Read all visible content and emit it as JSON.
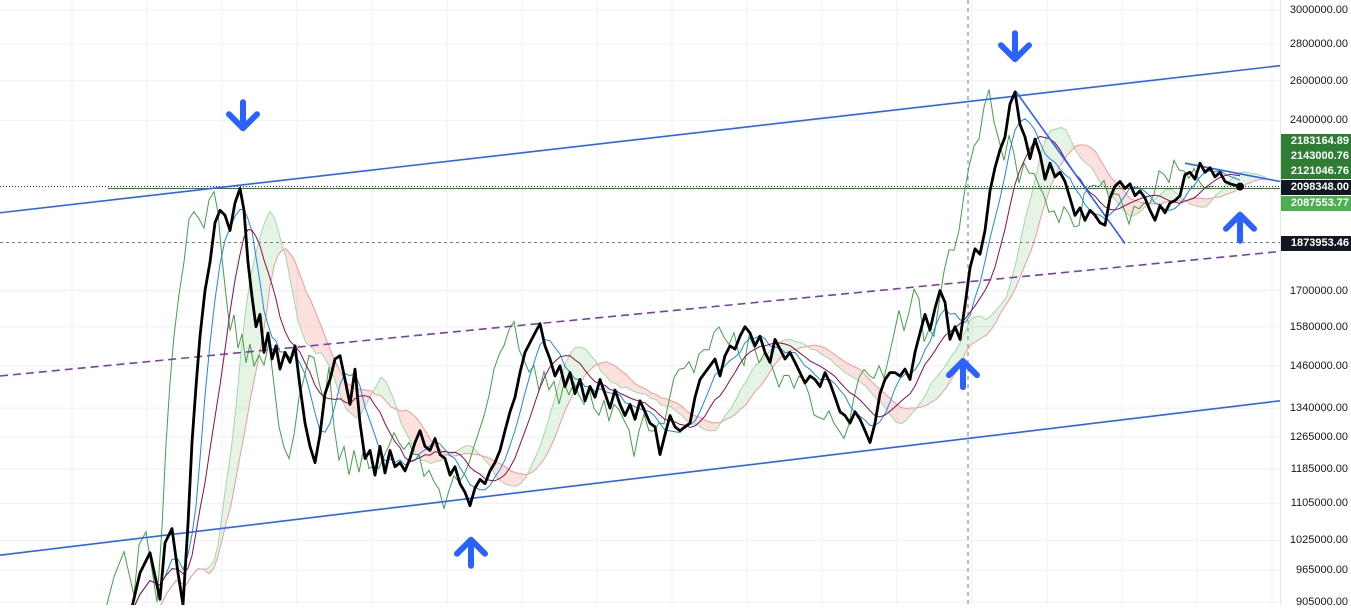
{
  "chart_data": {
    "type": "line",
    "y_scale": "log",
    "ylim": [
      905000,
      3000000
    ],
    "grid": true,
    "y_ticks": [
      {
        "value": 3000000,
        "label": "3000000.00"
      },
      {
        "value": 2800000,
        "label": "2800000.00"
      },
      {
        "value": 2600000,
        "label": "2600000.00"
      },
      {
        "value": 2400000,
        "label": "2400000.00"
      },
      {
        "value": 1700000,
        "label": "1700000.00"
      },
      {
        "value": 1580000,
        "label": "1580000.00"
      },
      {
        "value": 1460000,
        "label": "1460000.00"
      },
      {
        "value": 1340000,
        "label": "1340000.00"
      },
      {
        "value": 1265000,
        "label": "1265000.00"
      },
      {
        "value": 1185000,
        "label": "1185000.00"
      },
      {
        "value": 1105000,
        "label": "1105000.00"
      },
      {
        "value": 1025000,
        "label": "1025000.00"
      },
      {
        "value": 965000,
        "label": "965000.00"
      },
      {
        "value": 905000,
        "label": "905000.00"
      }
    ],
    "price_tags": [
      {
        "value": 2183164.89,
        "label": "2183164.89",
        "color": "#2e7d32"
      },
      {
        "value": 2143000.76,
        "label": "2143000.76",
        "color": "#2e7d32"
      },
      {
        "value": 2121046.76,
        "label": "2121046.76",
        "color": "#2e7d32"
      },
      {
        "value": 2098348.0,
        "label": "2098348.00",
        "color": "#131722"
      },
      {
        "value": 2087553.77,
        "label": "2087553.77",
        "color": "#4caf50"
      },
      {
        "value": 1873953.46,
        "label": "1873953.46",
        "color": "#131722"
      }
    ],
    "price_series": [
      [
        130,
        880000
      ],
      [
        140,
        960000
      ],
      [
        150,
        1000000
      ],
      [
        160,
        910000
      ],
      [
        165,
        1020000
      ],
      [
        172,
        1050000
      ],
      [
        178,
        960000
      ],
      [
        183,
        900000
      ],
      [
        188,
        1060000
      ],
      [
        192,
        1250000
      ],
      [
        196,
        1400000
      ],
      [
        200,
        1550000
      ],
      [
        205,
        1700000
      ],
      [
        210,
        1800000
      ],
      [
        215,
        1950000
      ],
      [
        220,
        2000000
      ],
      [
        225,
        1980000
      ],
      [
        230,
        1920000
      ],
      [
        235,
        2030000
      ],
      [
        240,
        2090000
      ],
      [
        244,
        2000000
      ],
      [
        248,
        1800000
      ],
      [
        252,
        1680000
      ],
      [
        256,
        1580000
      ],
      [
        260,
        1620000
      ],
      [
        264,
        1500000
      ],
      [
        268,
        1560000
      ],
      [
        272,
        1480000
      ],
      [
        276,
        1520000
      ],
      [
        280,
        1450000
      ],
      [
        285,
        1500000
      ],
      [
        290,
        1470000
      ],
      [
        295,
        1520000
      ],
      [
        300,
        1400000
      ],
      [
        305,
        1300000
      ],
      [
        310,
        1240000
      ],
      [
        315,
        1200000
      ],
      [
        320,
        1270000
      ],
      [
        325,
        1380000
      ],
      [
        330,
        1420000
      ],
      [
        335,
        1480000
      ],
      [
        340,
        1490000
      ],
      [
        345,
        1420000
      ],
      [
        350,
        1350000
      ],
      [
        355,
        1450000
      ],
      [
        360,
        1300000
      ],
      [
        365,
        1210000
      ],
      [
        370,
        1230000
      ],
      [
        375,
        1170000
      ],
      [
        380,
        1240000
      ],
      [
        385,
        1175000
      ],
      [
        390,
        1230000
      ],
      [
        395,
        1190000
      ],
      [
        400,
        1200000
      ],
      [
        405,
        1180000
      ],
      [
        410,
        1210000
      ],
      [
        415,
        1250000
      ],
      [
        420,
        1280000
      ],
      [
        425,
        1240000
      ],
      [
        430,
        1230000
      ],
      [
        435,
        1260000
      ],
      [
        440,
        1220000
      ],
      [
        445,
        1210000
      ],
      [
        450,
        1170000
      ],
      [
        455,
        1190000
      ],
      [
        460,
        1150000
      ],
      [
        465,
        1130000
      ],
      [
        470,
        1100000
      ],
      [
        475,
        1140000
      ],
      [
        480,
        1160000
      ],
      [
        485,
        1150000
      ],
      [
        490,
        1180000
      ],
      [
        495,
        1200000
      ],
      [
        500,
        1230000
      ],
      [
        505,
        1280000
      ],
      [
        510,
        1330000
      ],
      [
        515,
        1370000
      ],
      [
        520,
        1440000
      ],
      [
        525,
        1500000
      ],
      [
        530,
        1530000
      ],
      [
        535,
        1560000
      ],
      [
        540,
        1590000
      ],
      [
        545,
        1520000
      ],
      [
        550,
        1480000
      ],
      [
        555,
        1430000
      ],
      [
        560,
        1460000
      ],
      [
        565,
        1400000
      ],
      [
        570,
        1440000
      ],
      [
        575,
        1380000
      ],
      [
        580,
        1420000
      ],
      [
        585,
        1360000
      ],
      [
        590,
        1400000
      ],
      [
        595,
        1370000
      ],
      [
        600,
        1420000
      ],
      [
        605,
        1380000
      ],
      [
        610,
        1340000
      ],
      [
        615,
        1390000
      ],
      [
        620,
        1350000
      ],
      [
        625,
        1320000
      ],
      [
        630,
        1350000
      ],
      [
        635,
        1310000
      ],
      [
        640,
        1360000
      ],
      [
        645,
        1330000
      ],
      [
        650,
        1300000
      ],
      [
        655,
        1290000
      ],
      [
        660,
        1220000
      ],
      [
        665,
        1270000
      ],
      [
        670,
        1320000
      ],
      [
        675,
        1290000
      ],
      [
        680,
        1280000
      ],
      [
        685,
        1290000
      ],
      [
        690,
        1300000
      ],
      [
        695,
        1370000
      ],
      [
        700,
        1420000
      ],
      [
        705,
        1440000
      ],
      [
        710,
        1460000
      ],
      [
        715,
        1480000
      ],
      [
        720,
        1430000
      ],
      [
        725,
        1490000
      ],
      [
        730,
        1520000
      ],
      [
        735,
        1510000
      ],
      [
        740,
        1550000
      ],
      [
        745,
        1580000
      ],
      [
        750,
        1560000
      ],
      [
        755,
        1520000
      ],
      [
        760,
        1550000
      ],
      [
        765,
        1500000
      ],
      [
        770,
        1470000
      ],
      [
        775,
        1540000
      ],
      [
        780,
        1510000
      ],
      [
        785,
        1480000
      ],
      [
        790,
        1500000
      ],
      [
        795,
        1470000
      ],
      [
        800,
        1440000
      ],
      [
        805,
        1410000
      ],
      [
        810,
        1430000
      ],
      [
        815,
        1420000
      ],
      [
        820,
        1400000
      ],
      [
        825,
        1440000
      ],
      [
        830,
        1410000
      ],
      [
        835,
        1370000
      ],
      [
        840,
        1330000
      ],
      [
        845,
        1320000
      ],
      [
        850,
        1300000
      ],
      [
        855,
        1330000
      ],
      [
        860,
        1310000
      ],
      [
        865,
        1280000
      ],
      [
        870,
        1250000
      ],
      [
        875,
        1300000
      ],
      [
        880,
        1380000
      ],
      [
        885,
        1420000
      ],
      [
        890,
        1440000
      ],
      [
        895,
        1440000
      ],
      [
        900,
        1430000
      ],
      [
        905,
        1450000
      ],
      [
        910,
        1420000
      ],
      [
        915,
        1500000
      ],
      [
        920,
        1560000
      ],
      [
        925,
        1620000
      ],
      [
        930,
        1570000
      ],
      [
        935,
        1640000
      ],
      [
        940,
        1700000
      ],
      [
        945,
        1660000
      ],
      [
        950,
        1540000
      ],
      [
        955,
        1580000
      ],
      [
        960,
        1540000
      ],
      [
        965,
        1650000
      ],
      [
        970,
        1780000
      ],
      [
        975,
        1850000
      ],
      [
        980,
        1830000
      ],
      [
        985,
        1920000
      ],
      [
        990,
        2080000
      ],
      [
        995,
        2180000
      ],
      [
        1000,
        2260000
      ],
      [
        1005,
        2320000
      ],
      [
        1010,
        2480000
      ],
      [
        1015,
        2540000
      ],
      [
        1020,
        2380000
      ],
      [
        1025,
        2320000
      ],
      [
        1030,
        2220000
      ],
      [
        1035,
        2310000
      ],
      [
        1040,
        2240000
      ],
      [
        1045,
        2130000
      ],
      [
        1050,
        2200000
      ],
      [
        1055,
        2140000
      ],
      [
        1060,
        2160000
      ],
      [
        1065,
        2120000
      ],
      [
        1070,
        2050000
      ],
      [
        1075,
        1980000
      ],
      [
        1080,
        2010000
      ],
      [
        1085,
        1960000
      ],
      [
        1090,
        2000000
      ],
      [
        1095,
        1980000
      ],
      [
        1100,
        1950000
      ],
      [
        1105,
        1940000
      ],
      [
        1110,
        2050000
      ],
      [
        1115,
        2100000
      ],
      [
        1120,
        2120000
      ],
      [
        1125,
        2090000
      ],
      [
        1130,
        2110000
      ],
      [
        1135,
        2060000
      ],
      [
        1140,
        2080000
      ],
      [
        1145,
        2050000
      ],
      [
        1150,
        2000000
      ],
      [
        1155,
        1960000
      ],
      [
        1160,
        2020000
      ],
      [
        1165,
        1990000
      ],
      [
        1170,
        2030000
      ],
      [
        1175,
        2040000
      ],
      [
        1180,
        2060000
      ],
      [
        1185,
        2150000
      ],
      [
        1190,
        2160000
      ],
      [
        1195,
        2130000
      ],
      [
        1200,
        2200000
      ],
      [
        1205,
        2160000
      ],
      [
        1210,
        2180000
      ],
      [
        1215,
        2140000
      ],
      [
        1220,
        2160000
      ],
      [
        1225,
        2120000
      ],
      [
        1230,
        2110000
      ],
      [
        1240,
        2098348
      ]
    ],
    "trendlines": [
      {
        "name": "upper-channel",
        "color": "#2962ff",
        "dash": false,
        "points": [
          [
            0,
            1990000
          ],
          [
            1280,
            2680000
          ]
        ]
      },
      {
        "name": "lower-channel",
        "color": "#2962ff",
        "dash": false,
        "points": [
          [
            0,
            995000
          ],
          [
            1280,
            1360000
          ]
        ]
      },
      {
        "name": "mid-channel",
        "color": "#7b3fa8",
        "dash": true,
        "points": [
          [
            0,
            1430000
          ],
          [
            1280,
            1840000
          ]
        ]
      },
      {
        "name": "descending-line",
        "color": "#2962ff",
        "dash": false,
        "points": [
          [
            1015,
            2550000
          ],
          [
            1125,
            1870000
          ]
        ]
      },
      {
        "name": "short-descending-line",
        "color": "#2962ff",
        "dash": false,
        "points": [
          [
            1185,
            2200000
          ],
          [
            1280,
            2120000
          ]
        ]
      }
    ],
    "horizontal_levels": [
      {
        "name": "resistance-level",
        "value": 2090000,
        "color": "#2e7d32",
        "from": 108,
        "to": 1280
      },
      {
        "name": "support-level",
        "value": 1873953.46,
        "color": "#787b86",
        "from": 0,
        "to": 1280,
        "dash": true
      }
    ],
    "markers": [
      {
        "name": "down-arrow",
        "x": 243,
        "value": 2400000,
        "direction": "down"
      },
      {
        "name": "down-arrow",
        "x": 1015,
        "value": 2760000,
        "direction": "down"
      },
      {
        "name": "up-arrow",
        "x": 471,
        "value": 1010000,
        "direction": "up"
      },
      {
        "name": "up-arrow",
        "x": 963,
        "value": 1450000,
        "direction": "up"
      },
      {
        "name": "up-arrow",
        "x": 1240,
        "value": 1950000,
        "direction": "up"
      }
    ],
    "crosshair_x": 968
  }
}
